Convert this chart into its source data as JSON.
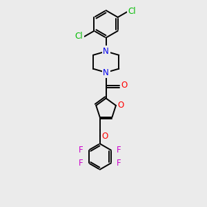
{
  "bg_color": "#ebebeb",
  "bond_color": "#000000",
  "bond_width": 1.4,
  "atom_colors": {
    "Cl": "#00bb00",
    "N": "#0000ee",
    "O": "#ff0000",
    "F": "#cc00cc"
  },
  "fig_size": [
    3.0,
    3.0
  ],
  "dpi": 100
}
